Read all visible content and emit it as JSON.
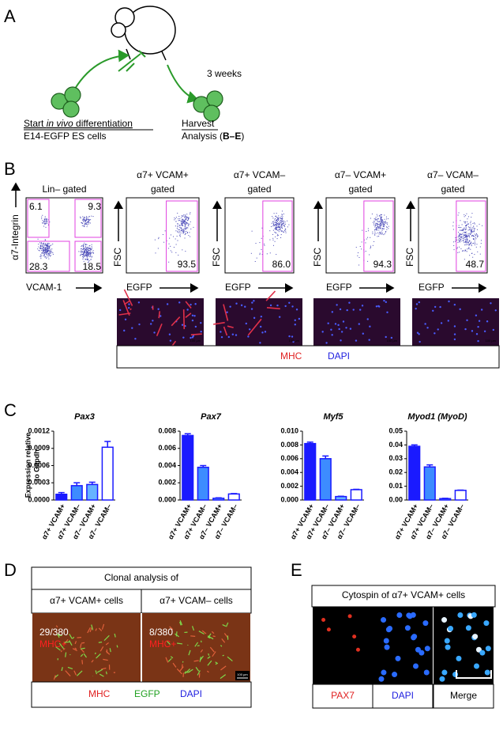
{
  "panel_labels": [
    "A",
    "B",
    "C",
    "D",
    "E"
  ],
  "panel_a": {
    "interval": "3 weeks",
    "start_prefix": "Start ",
    "start_em": "in vivo",
    "start_suffix": " differentiation",
    "start_cells": "E14-EGFP ES cells",
    "harvest": "Harvest",
    "analysis_prefix": "Analysis (",
    "analysis_ref": "B–E",
    "analysis_suffix": ")"
  },
  "panel_b": {
    "plots": [
      {
        "title": [
          "Lin– gated"
        ],
        "ylabel": "α7-Integrin",
        "xlabel": "VCAM-1",
        "gates": [
          "6.1",
          "9.3",
          "28.3",
          "18.5"
        ]
      },
      {
        "title": [
          "α7+ VCAM+",
          "gated"
        ],
        "ylabel": "FSC",
        "xlabel": "EGFP",
        "gates": [
          "93.5"
        ]
      },
      {
        "title": [
          "α7+ VCAM–",
          "gated"
        ],
        "ylabel": "FSC",
        "xlabel": "EGFP",
        "gates": [
          "86.0"
        ]
      },
      {
        "title": [
          "α7– VCAM+",
          "gated"
        ],
        "ylabel": "FSC",
        "xlabel": "EGFP",
        "gates": [
          "94.3"
        ]
      },
      {
        "title": [
          "α7– VCAM–",
          "gated"
        ],
        "ylabel": "FSC",
        "xlabel": "EGFP",
        "gates": [
          "48.7"
        ]
      }
    ],
    "stains": [
      "MHC",
      "DAPI"
    ],
    "scale_bar": "100 µm"
  },
  "chart_data": [
    {
      "type": "bar",
      "title": "Pax3",
      "ylabel": [
        "Expression relative",
        "to Gapdh"
      ],
      "categories": [
        "α7+ VCAM+",
        "α7+ VCAM–",
        "α7– VCAM+",
        "α7– VCAM–"
      ],
      "values": [
        0.0001,
        0.00025,
        0.00027,
        0.00092
      ],
      "errors": [
        3e-05,
        5e-05,
        4e-05,
        0.0001
      ],
      "colors": [
        "#1a1aff",
        "#3d8cff",
        "#66b3ff",
        "#ffffff"
      ],
      "edgecolor": "#1a1aff",
      "ylim": [
        0,
        0.0012
      ],
      "yticks": [
        {
          "value": 0,
          "label": "0.0000"
        },
        0.0003,
        0.0006,
        0.0009,
        0.0012
      ]
    },
    {
      "type": "bar",
      "title": "Pax7",
      "categories": [
        "α7+ VCAM+",
        "α7+ VCAM–",
        "α7– VCAM+",
        "α7– VCAM–"
      ],
      "values": [
        0.0075,
        0.0038,
        0.0002,
        0.0007
      ],
      "errors": [
        0.0002,
        0.0002,
        5e-05,
        5e-05
      ],
      "colors": [
        "#1a1aff",
        "#3d8cff",
        "#66b3ff",
        "#ffffff"
      ],
      "edgecolor": "#1a1aff",
      "ylim": [
        0,
        0.008
      ],
      "yticks": [
        {
          "value": 0,
          "label": "0.000"
        },
        0.002,
        0.004,
        0.006,
        0.008
      ]
    },
    {
      "type": "bar",
      "title": "Myf5",
      "categories": [
        "α7+ VCAM+",
        "α7+ VCAM–",
        "α7– VCAM+",
        "α7– VCAM–"
      ],
      "values": [
        0.0082,
        0.006,
        0.0005,
        0.0015
      ],
      "errors": [
        0.0002,
        0.0004,
        5e-05,
        5e-05
      ],
      "colors": [
        "#1a1aff",
        "#3d8cff",
        "#66b3ff",
        "#ffffff"
      ],
      "edgecolor": "#1a1aff",
      "ylim": [
        0,
        0.01
      ],
      "yticks": [
        {
          "value": 0,
          "label": "0.000"
        },
        0.002,
        0.004,
        0.006,
        0.008,
        {
          "value": 0.01,
          "label": "0.010"
        }
      ]
    },
    {
      "type": "bar",
      "title": "Myod1 (MyoD)",
      "categories": [
        "α7+ VCAM+",
        "α7+ VCAM–",
        "α7– VCAM+",
        "α7– VCAM–"
      ],
      "values": [
        0.039,
        0.024,
        0.001,
        0.007
      ],
      "errors": [
        0.001,
        0.0015,
        0.0002,
        0.0002
      ],
      "colors": [
        "#1a1aff",
        "#3d8cff",
        "#66b3ff",
        "#ffffff"
      ],
      "edgecolor": "#1a1aff",
      "ylim": [
        0,
        0.05
      ],
      "yticks": [
        {
          "value": 0,
          "label": "0.00"
        },
        0.01,
        0.02,
        0.03,
        0.04,
        0.05
      ]
    }
  ],
  "panel_d": {
    "title": "Clonal analysis of",
    "columns": [
      {
        "header": "α7+ VCAM+ cells",
        "count": "29/380",
        "marker": "MHC+"
      },
      {
        "header": "α7+ VCAM– cells",
        "count": "8/380",
        "marker": "MHC+"
      }
    ],
    "scale_bar": "100 µm",
    "stains": [
      "MHC",
      "EGFP",
      "DAPI"
    ]
  },
  "panel_e": {
    "title": "Cytospin of α7+ VCAM+ cells",
    "channels": [
      "PAX7",
      "DAPI",
      "Merge"
    ]
  }
}
